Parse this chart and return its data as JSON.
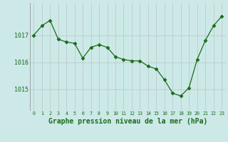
{
  "x": [
    0,
    1,
    2,
    3,
    4,
    5,
    6,
    7,
    8,
    9,
    10,
    11,
    12,
    13,
    14,
    15,
    16,
    17,
    18,
    19,
    20,
    21,
    22,
    23
  ],
  "y": [
    1017.0,
    1017.35,
    1017.55,
    1016.85,
    1016.75,
    1016.7,
    1016.15,
    1016.55,
    1016.65,
    1016.55,
    1016.2,
    1016.1,
    1016.05,
    1016.05,
    1015.85,
    1015.75,
    1015.35,
    1014.85,
    1014.75,
    1015.05,
    1016.1,
    1016.8,
    1017.35,
    1017.7
  ],
  "line_color": "#1a6b1a",
  "marker": "D",
  "marker_size": 2.5,
  "bg_color": "#cce9e8",
  "grid_color": "#aaaaaa",
  "xlabel": "Graphe pression niveau de la mer (hPa)",
  "xlabel_fontsize": 7.0,
  "xlabel_color": "#1a6b1a",
  "tick_label_color": "#1a6b1a",
  "yticks": [
    1015,
    1016,
    1017
  ],
  "ylim": [
    1014.2,
    1018.2
  ],
  "xlim": [
    -0.5,
    23.5
  ],
  "xticks": [
    0,
    1,
    2,
    3,
    4,
    5,
    6,
    7,
    8,
    9,
    10,
    11,
    12,
    13,
    14,
    15,
    16,
    17,
    18,
    19,
    20,
    21,
    22,
    23
  ]
}
